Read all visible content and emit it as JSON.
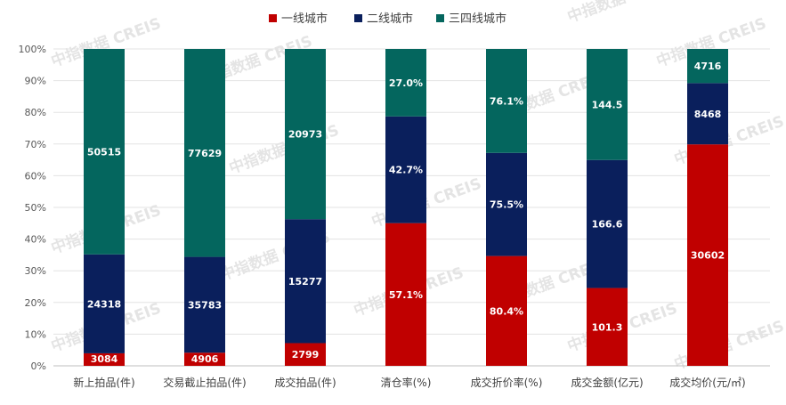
{
  "chart_data": {
    "type": "bar",
    "stacked": "percent",
    "categories": [
      "新上拍品(件)",
      "交易截止拍品(件)",
      "成交拍品(件)",
      "清仓率(%)",
      "成交折价率(%)",
      "成交金额(亿元)",
      "成交均价(元/㎡)"
    ],
    "series": [
      {
        "name": "一线城市",
        "color": "#c00000",
        "values": [
          3084,
          4906,
          2799,
          57.1,
          80.4,
          101.3,
          30602
        ],
        "labels": [
          "3084",
          "4906",
          "2799",
          "57.1%",
          "80.4%",
          "101.3",
          "30602"
        ]
      },
      {
        "name": "二线城市",
        "color": "#0a1f5c",
        "values": [
          24318,
          35783,
          15277,
          42.7,
          75.5,
          166.6,
          8468
        ],
        "labels": [
          "24318",
          "35783",
          "15277",
          "42.7%",
          "75.5%",
          "166.6",
          "8468"
        ]
      },
      {
        "name": "三四线城市",
        "color": "#04665e",
        "values": [
          50515,
          77629,
          20973,
          27.0,
          76.1,
          144.5,
          4716
        ],
        "labels": [
          "50515",
          "77629",
          "20973",
          "27.0%",
          "76.1%",
          "144.5",
          "4716"
        ]
      }
    ],
    "ylim": [
      0,
      100
    ],
    "yticks": [
      "0%",
      "10%",
      "20%",
      "30%",
      "40%",
      "50%",
      "60%",
      "70%",
      "80%",
      "90%",
      "100%"
    ],
    "legend_position": "top",
    "grid": true
  },
  "watermark": "中指数据 CREIS"
}
